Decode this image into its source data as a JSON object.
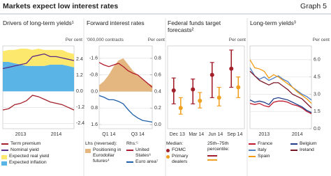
{
  "title": "Markets expect low interest rates",
  "graph_label": "Graph 5",
  "chart_data": [
    {
      "type": "line",
      "title": "Drivers of long-term yields¹",
      "y_unit": "Per cent",
      "yaxis_side": "right",
      "categories": [
        null,
        null,
        null,
        "2013",
        null,
        null,
        null,
        null,
        null,
        "2014",
        null,
        null,
        null
      ],
      "ylim": [
        -2.8,
        3.4
      ],
      "yticks": [
        2.4,
        1.2,
        {
          "value": 0,
          "label": "0.0"
        },
        -1.2,
        -2.4
      ],
      "grid": true,
      "series": [
        {
          "name": "Term premium",
          "type": "line",
          "color": "#a3202b",
          "values": [
            -1.4,
            -1.3,
            -1.0,
            -0.9,
            -0.7,
            -0.3,
            -0.4,
            -0.6,
            -0.8,
            -0.9,
            -1.0,
            -1.2,
            -1.4
          ]
        },
        {
          "name": "Nominal yield",
          "type": "line",
          "color": "#5b2a86",
          "values": [
            1.7,
            1.8,
            1.9,
            2.0,
            2.1,
            2.6,
            2.7,
            2.8,
            2.6,
            2.6,
            2.5,
            2.4,
            2.3
          ]
        },
        {
          "name": "Expected real yield",
          "type": "area",
          "color": "#fde86e",
          "values": [
            0.8,
            0.9,
            1.0,
            1.2,
            1.3,
            1.2,
            1.3,
            1.2,
            1.1,
            1.1,
            1.1,
            1.0,
            1.0
          ]
        },
        {
          "name": "Expected inflation",
          "type": "area",
          "color": "#5ab4e5",
          "values": [
            2.2,
            2.2,
            2.1,
            2.0,
            1.9,
            1.9,
            1.9,
            1.9,
            2.0,
            2.0,
            2.0,
            1.9,
            1.8
          ]
        }
      ]
    },
    {
      "type": "line",
      "title": "Forward interest rates",
      "y_unit": "'000,000 contracts",
      "y2_unit": "Per cent",
      "yaxis_side": "left",
      "categories": [
        null,
        null,
        "Q1 14",
        null,
        null,
        null,
        null,
        null,
        "Q3 14",
        null,
        null,
        null
      ],
      "ylim": [
        -2.2,
        1.8
      ],
      "y_reversed": true,
      "yticks": [
        -1.6,
        -0.8,
        {
          "value": 0,
          "label": "0.0"
        },
        0.8,
        1.6
      ],
      "y2lim": [
        -0.05,
        0.95
      ],
      "y2ticks": [
        0.8,
        0.6,
        0.4,
        0.2,
        {
          "value": 0,
          "label": "0.0"
        }
      ],
      "grid": true,
      "lhs_label": "Lhs (reversed):",
      "rhs_label": "Rhs:⁵",
      "series": [
        {
          "name": "Positioning in Eurodollar futures⁴",
          "type": "area",
          "color": "#e3b77f",
          "values": [
            -0.3,
            -0.5,
            -0.8,
            -1.2,
            -1.5,
            -1.6,
            -1.3,
            -1.0,
            -0.8,
            -0.6,
            -0.4,
            -0.3
          ]
        },
        {
          "name": "United States⁶",
          "type": "line",
          "axis": "y2",
          "color": "#b11a2b",
          "values": [
            0.75,
            0.72,
            0.7,
            0.72,
            0.74,
            0.7,
            0.65,
            0.62,
            0.6,
            0.55,
            0.5,
            0.45
          ]
        },
        {
          "name": "Euro area⁷",
          "type": "line",
          "axis": "y2",
          "color": "#1f5fa8",
          "values": [
            0.35,
            0.33,
            0.3,
            0.3,
            0.28,
            0.25,
            0.18,
            0.12,
            0.08,
            0.05,
            0.04,
            0.03
          ]
        }
      ]
    },
    {
      "type": "errorbar",
      "title": "Federal funds target forecasts²",
      "y_unit": "Per cent",
      "yaxis_side": "right",
      "categories": [
        "Dec 13",
        "Mar 14",
        "Jun 14",
        "Sep 14"
      ],
      "ylim": [
        0,
        4
      ],
      "median_label": "Median:",
      "range_label": "25th–75th percentile:",
      "series": [
        {
          "name": "FOMC",
          "color": "#a3202b",
          "values": [
            1.85,
            1.9,
            2.6,
            2.9
          ],
          "low": [
            1.2,
            1.2,
            1.5,
            2.0
          ],
          "high": [
            2.45,
            2.4,
            3.2,
            3.8
          ]
        },
        {
          "name": "Primary dealers",
          "color": "#f0a020",
          "values": [
            1.0,
            1.35,
            1.5,
            2.0
          ],
          "low": [
            0.7,
            1.0,
            1.1,
            1.5
          ],
          "high": [
            1.5,
            1.75,
            2.0,
            2.5
          ]
        }
      ]
    },
    {
      "type": "line",
      "title": "Long-term yields³",
      "y_unit": "Per cent",
      "yaxis_side": "right",
      "categories": [
        null,
        null,
        null,
        "2013",
        null,
        null,
        null,
        null,
        null,
        null,
        "2014",
        null,
        null,
        null
      ],
      "ylim": [
        0,
        7.2
      ],
      "yticks": [
        {
          "value": 6,
          "label": "6.0"
        },
        4.5,
        {
          "value": 3,
          "label": "3.0"
        },
        1.5,
        {
          "value": 0,
          "label": "0.0"
        }
      ],
      "grid": true,
      "series": [
        {
          "name": "France",
          "type": "line",
          "color": "#c0192c",
          "values": [
            2.2,
            2.1,
            2.2,
            2.0,
            1.9,
            2.3,
            2.4,
            2.4,
            2.3,
            2.1,
            2.0,
            1.8,
            1.5,
            1.3
          ]
        },
        {
          "name": "Italy",
          "type": "line",
          "color": "#4d7fc4",
          "values": [
            5.3,
            4.6,
            4.3,
            4.5,
            4.2,
            4.4,
            4.6,
            4.3,
            4.1,
            3.6,
            3.3,
            3.0,
            2.8,
            2.5
          ]
        },
        {
          "name": "Spain",
          "type": "line",
          "color": "#f39c12",
          "values": [
            6.0,
            5.3,
            5.2,
            5.0,
            4.4,
            4.7,
            4.5,
            4.2,
            3.9,
            3.6,
            3.2,
            2.9,
            2.6,
            2.2
          ]
        },
        {
          "name": "Belgium",
          "type": "line",
          "color": "#1f3c88",
          "values": [
            2.5,
            2.3,
            2.4,
            2.3,
            2.1,
            2.6,
            2.7,
            2.6,
            2.5,
            2.3,
            2.1,
            1.9,
            1.6,
            1.4
          ]
        },
        {
          "name": "Ireland",
          "type": "line",
          "color": "#7a1526",
          "values": [
            5.0,
            4.6,
            4.2,
            4.0,
            3.8,
            4.0,
            4.0,
            3.7,
            3.4,
            3.0,
            2.8,
            2.6,
            2.2,
            1.8
          ]
        }
      ]
    }
  ]
}
